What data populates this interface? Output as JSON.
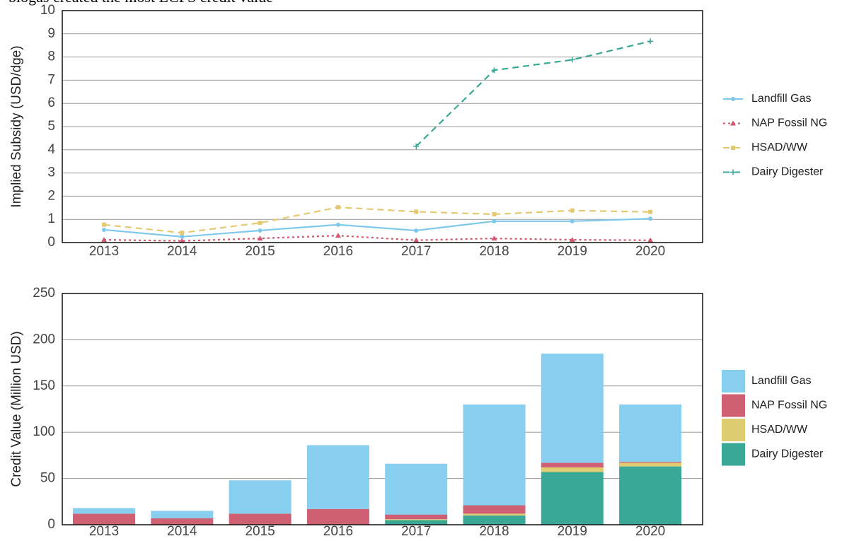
{
  "caption": "biogas created the most LCFS credit value",
  "chart_data": [
    {
      "type": "line",
      "ylabel": "Implied Subsidy (USD/dge)",
      "categories": [
        "2013",
        "2014",
        "2015",
        "2016",
        "2017",
        "2018",
        "2019",
        "2020"
      ],
      "ylim": [
        0,
        10
      ],
      "yticks": [
        0,
        1,
        2,
        3,
        4,
        5,
        6,
        7,
        8,
        9,
        10
      ],
      "grid": true,
      "series": [
        {
          "name": "Landfill Gas",
          "color": "#7ec8ec",
          "dash": "solid",
          "marker": "circle",
          "values": [
            0.55,
            0.25,
            0.52,
            0.77,
            0.52,
            0.92,
            0.92,
            1.03
          ]
        },
        {
          "name": "NAP Fossil NG",
          "color": "#d0576f",
          "dash": "dotted",
          "marker": "triangle",
          "values": [
            0.12,
            0.07,
            0.18,
            0.3,
            0.1,
            0.18,
            0.12,
            0.1
          ]
        },
        {
          "name": "HSAD/WW",
          "color": "#e4c970",
          "dash": "dashed",
          "marker": "square",
          "values": [
            0.77,
            0.42,
            0.85,
            1.52,
            1.33,
            1.22,
            1.38,
            1.32
          ]
        },
        {
          "name": "Dairy Digester",
          "color": "#3aa896",
          "dash": "dashed",
          "marker": "plus",
          "values": [
            null,
            null,
            null,
            null,
            4.15,
            7.43,
            7.88,
            8.68
          ]
        }
      ]
    },
    {
      "type": "stacked_bar",
      "ylabel": "Credit Value (Million USD)",
      "categories": [
        "2013",
        "2014",
        "2015",
        "2016",
        "2017",
        "2018",
        "2019",
        "2020"
      ],
      "ylim": [
        0,
        250
      ],
      "yticks": [
        0,
        50,
        100,
        150,
        200,
        250
      ],
      "grid": true,
      "series": [
        {
          "name": "Landfill Gas",
          "color": "#87ceef",
          "values": [
            6,
            8,
            36,
            69,
            55,
            109,
            118,
            62
          ]
        },
        {
          "name": "NAP Fossil NG",
          "color": "#cf5f72",
          "values": [
            12,
            7,
            12,
            17,
            5,
            9,
            5,
            1
          ]
        },
        {
          "name": "HSAD/WW",
          "color": "#e0cc70",
          "values": [
            0,
            0,
            0,
            0,
            1,
            2,
            5,
            4
          ]
        },
        {
          "name": "Dairy Digester",
          "color": "#3aa896",
          "values": [
            0,
            0,
            0,
            0,
            5,
            10,
            57,
            63
          ]
        }
      ]
    }
  ]
}
